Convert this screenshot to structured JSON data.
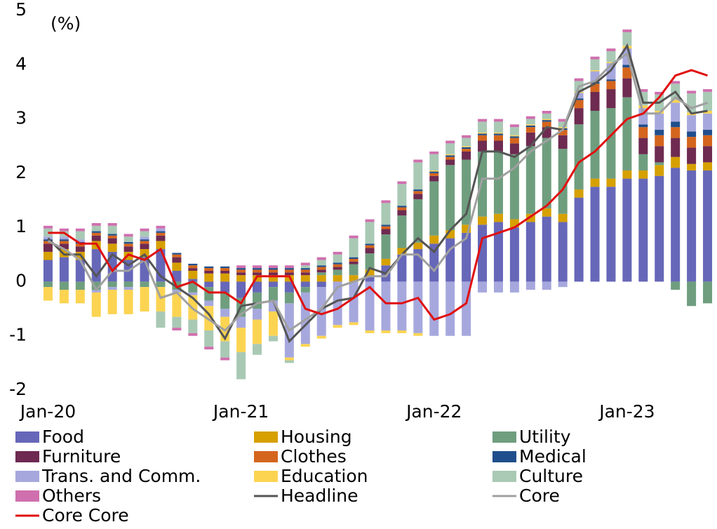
{
  "chart_data": {
    "type": "bar",
    "ylabel": "(%)",
    "categories": [
      "Jan-20",
      null,
      null,
      null,
      null,
      null,
      null,
      null,
      null,
      null,
      null,
      null,
      "Jan-21",
      null,
      null,
      null,
      null,
      null,
      null,
      null,
      null,
      null,
      null,
      null,
      "Jan-22",
      null,
      null,
      null,
      null,
      null,
      null,
      null,
      null,
      null,
      null,
      null,
      "Jan-23",
      null,
      null,
      null,
      null,
      null
    ],
    "ylim": [
      -2,
      5
    ],
    "yticks": [
      -2,
      -1,
      0,
      1,
      2,
      3,
      4,
      5
    ],
    "negative_tick_color": "#e01010",
    "series": [
      {
        "name": "Food",
        "type": "bar",
        "color": "#6667b8",
        "values": [
          0.4,
          0.45,
          0.4,
          0.6,
          0.55,
          0.4,
          0.45,
          0.6,
          0.2,
          0.05,
          -0.1,
          -0.2,
          -0.3,
          -0.2,
          -0.1,
          -0.2,
          -0.1,
          -0.1,
          0,
          0,
          0.1,
          0.3,
          0.5,
          0.6,
          0.7,
          0.8,
          0.9,
          1.05,
          1.1,
          1.0,
          1.1,
          1.2,
          1.1,
          1.55,
          1.75,
          1.75,
          1.9,
          1.9,
          1.95,
          2.1,
          2.05,
          2.05
        ]
      },
      {
        "name": "Housing",
        "type": "bar",
        "color": "#d6a000",
        "values": [
          0.15,
          0.15,
          0.15,
          0.15,
          0.15,
          0.15,
          0.15,
          0.15,
          0.15,
          0.15,
          0.15,
          0.15,
          0.12,
          0.12,
          0.12,
          0.12,
          0.12,
          0.12,
          0.12,
          0.12,
          0.12,
          0.12,
          0.12,
          0.12,
          0.15,
          0.15,
          0.15,
          0.15,
          0.15,
          0.15,
          0.15,
          0.15,
          0.15,
          0.15,
          0.15,
          0.15,
          0.15,
          0.15,
          0.2,
          0.2,
          0.12,
          0.15
        ]
      },
      {
        "name": "Utility",
        "type": "bar",
        "color": "#6f9e7f",
        "values": [
          -0.1,
          -0.15,
          -0.15,
          -0.15,
          -0.1,
          -0.1,
          -0.1,
          -0.1,
          -0.15,
          -0.2,
          -0.25,
          -0.3,
          -0.35,
          -0.3,
          -0.25,
          -0.2,
          -0.1,
          0.05,
          0.1,
          0.2,
          0.3,
          0.45,
          0.6,
          0.8,
          1.0,
          1.2,
          1.2,
          1.2,
          1.15,
          1.2,
          1.25,
          1.3,
          1.2,
          1.2,
          1.25,
          1.3,
          1.35,
          0.3,
          0.05,
          -0.15,
          -0.45,
          -0.4
        ]
      },
      {
        "name": "Furniture",
        "type": "bar",
        "color": "#6e2a50",
        "values": [
          0.15,
          0.1,
          0.1,
          0.1,
          0.1,
          0.1,
          0.1,
          0.1,
          0.1,
          0.05,
          0.05,
          0.05,
          0.05,
          0.05,
          0.05,
          0.05,
          0.05,
          0.05,
          0.05,
          0.05,
          0.1,
          0.1,
          0.1,
          0.1,
          0.1,
          0.1,
          0.15,
          0.2,
          0.2,
          0.2,
          0.25,
          0.2,
          0.25,
          0.3,
          0.35,
          0.35,
          0.35,
          0.3,
          0.3,
          0.35,
          0.3,
          0.3
        ]
      },
      {
        "name": "Clothes",
        "type": "bar",
        "color": "#d4651d",
        "values": [
          0.05,
          0.05,
          0.05,
          0.05,
          0.05,
          0.05,
          0.05,
          0.05,
          0.05,
          0.05,
          0.05,
          0.05,
          0.05,
          0.05,
          0.05,
          0.05,
          0.05,
          0.05,
          0.05,
          0.05,
          0.05,
          0.05,
          0.05,
          0.05,
          0.05,
          0.05,
          0.05,
          0.1,
          0.1,
          0.1,
          0.1,
          0.1,
          0.1,
          0.15,
          0.15,
          0.15,
          0.2,
          0.2,
          0.2,
          0.2,
          0.2,
          0.2
        ]
      },
      {
        "name": "Medical",
        "type": "bar",
        "color": "#1f4e8c",
        "values": [
          0.03,
          0.03,
          0.03,
          0.03,
          0.03,
          0.03,
          0.03,
          0.03,
          0.03,
          0.03,
          0.03,
          0.03,
          0.03,
          0.03,
          0.03,
          0.03,
          0.03,
          0.03,
          0.03,
          0.03,
          0.03,
          0.03,
          0.03,
          0.03,
          0.03,
          0.03,
          0.03,
          0.03,
          0.03,
          0.03,
          0.03,
          0.03,
          0.03,
          0.03,
          0.03,
          0.03,
          0.05,
          0.05,
          0.1,
          0.1,
          0.1,
          0.1
        ]
      },
      {
        "name": "Trans. and Comm.",
        "type": "bar",
        "color": "#a6a8dd",
        "values": [
          0.05,
          0.05,
          0.05,
          -0.05,
          -0.05,
          -0.05,
          0.05,
          0.05,
          -0.05,
          -0.05,
          -0.1,
          -0.15,
          -0.2,
          -0.2,
          -0.2,
          -1.0,
          -0.95,
          -0.9,
          -0.8,
          -0.75,
          -0.9,
          -0.9,
          -0.9,
          -0.95,
          -1.0,
          -1.0,
          -1.0,
          -0.2,
          -0.2,
          -0.2,
          -0.15,
          -0.15,
          -0.1,
          0.1,
          0.2,
          0.3,
          0.3,
          0.3,
          0.3,
          0.35,
          0.3,
          0.3
        ]
      },
      {
        "name": "Education",
        "type": "bar",
        "color": "#fcd452",
        "values": [
          -0.25,
          -0.25,
          -0.25,
          -0.45,
          -0.45,
          -0.45,
          -0.45,
          -0.45,
          -0.45,
          -0.45,
          -0.45,
          -0.45,
          -0.45,
          -0.45,
          -0.45,
          -0.05,
          -0.05,
          -0.05,
          -0.05,
          -0.05,
          -0.05,
          -0.05,
          -0.05,
          -0.05,
          0.02,
          0.02,
          0.02,
          0.02,
          0.02,
          0.02,
          0.02,
          0.02,
          0.02,
          0.02,
          0.02,
          0.02,
          0.05,
          0.05,
          0.05,
          0.05,
          0.05,
          0.05
        ]
      },
      {
        "name": "Culture",
        "type": "bar",
        "color": "#a9c9b5",
        "values": [
          0.15,
          0.1,
          0.15,
          0.1,
          0.15,
          0.1,
          0.1,
          -0.3,
          -0.2,
          -0.25,
          -0.3,
          -0.3,
          -0.5,
          -0.2,
          -0.1,
          -0.05,
          0.05,
          0.1,
          0.15,
          0.35,
          0.4,
          0.4,
          0.4,
          0.5,
          0.3,
          0.2,
          0.15,
          0.2,
          0.2,
          0.15,
          0.1,
          0.1,
          0.1,
          0.2,
          0.2,
          0.2,
          0.25,
          0.25,
          0.3,
          0.3,
          0.35,
          0.35
        ]
      },
      {
        "name": "Others",
        "type": "bar",
        "color": "#cf6fae",
        "values": [
          0.05,
          0.05,
          0.05,
          0.05,
          0.05,
          0.05,
          0.05,
          0.05,
          -0.05,
          -0.05,
          -0.05,
          -0.05,
          0.05,
          0.05,
          0.05,
          0.05,
          0.05,
          0.05,
          0.05,
          0.05,
          0.05,
          0.05,
          0.05,
          0.05,
          0.05,
          0.05,
          0.05,
          0.05,
          0.05,
          0.05,
          0.05,
          0.05,
          0.05,
          0.05,
          0.05,
          0.05,
          0.05,
          0.05,
          0.05,
          0.05,
          0.05,
          0.05
        ]
      },
      {
        "name": "Headline",
        "type": "line",
        "color": "#555555",
        "values": [
          0.8,
          0.5,
          0.5,
          0.1,
          0.5,
          0.3,
          0.5,
          0.1,
          -0.1,
          -0.3,
          -0.6,
          -1.05,
          -0.45,
          -0.4,
          -0.35,
          -1.1,
          -0.8,
          -0.5,
          -0.35,
          -0.3,
          0.25,
          0.15,
          0.5,
          0.8,
          0.55,
          0.95,
          1.25,
          2.4,
          2.4,
          2.3,
          2.5,
          2.85,
          2.8,
          3.5,
          3.65,
          3.9,
          4.35,
          3.3,
          3.3,
          3.5,
          3.1,
          3.15
        ]
      },
      {
        "name": "Core",
        "type": "line",
        "color": "#a0a0a0",
        "values": [
          0.75,
          0.6,
          0.4,
          -0.15,
          0.2,
          0.2,
          0.4,
          -0.3,
          -0.2,
          -0.5,
          -0.7,
          -0.9,
          -0.6,
          -0.4,
          -0.35,
          -0.9,
          -0.7,
          -0.5,
          -0.1,
          0.0,
          0.1,
          0.1,
          0.5,
          0.5,
          0.2,
          0.6,
          0.8,
          1.9,
          1.9,
          2.1,
          2.4,
          2.6,
          2.8,
          3.6,
          3.7,
          4.0,
          4.2,
          3.1,
          3.1,
          3.4,
          3.2,
          3.3
        ]
      },
      {
        "name": "Core Core",
        "type": "line",
        "color": "#e01010",
        "values": [
          0.9,
          0.9,
          0.7,
          0.7,
          0.2,
          0.5,
          0.4,
          0.6,
          -0.1,
          0.0,
          -0.2,
          -0.2,
          -0.4,
          0.1,
          0.1,
          0.1,
          -0.5,
          -0.6,
          -0.5,
          -0.3,
          -0.1,
          -0.4,
          -0.4,
          -0.3,
          -0.7,
          -0.6,
          -0.4,
          0.8,
          0.9,
          1.0,
          1.2,
          1.4,
          1.7,
          2.2,
          2.4,
          2.7,
          3.0,
          3.1,
          3.4,
          3.8,
          3.9,
          3.8
        ]
      }
    ]
  }
}
